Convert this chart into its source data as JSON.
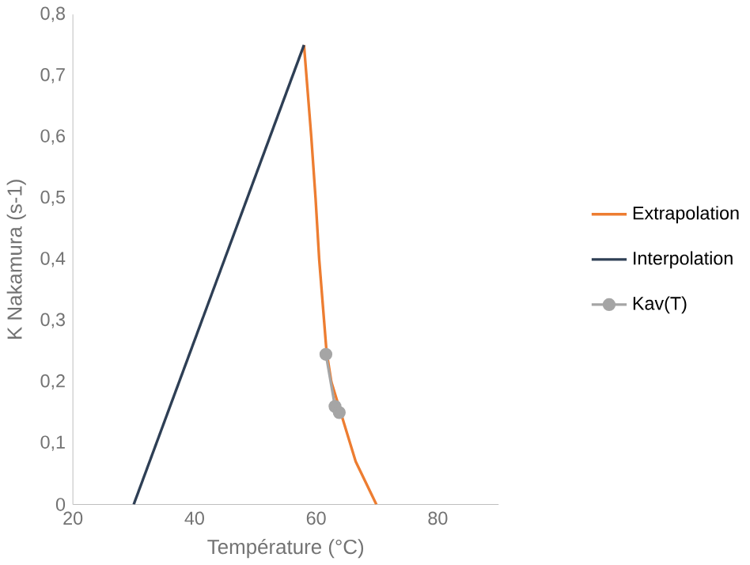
{
  "chart_data": {
    "type": "line",
    "xlabel": "Température (°C)",
    "ylabel": "K Nakamura (s-1)",
    "xlim": [
      20,
      90
    ],
    "xticks": [
      20,
      40,
      60,
      80
    ],
    "ylim": [
      0,
      0.8
    ],
    "yticks": [
      {
        "value": 0,
        "label": "0"
      },
      {
        "value": 0.1,
        "label": "0,1"
      },
      {
        "value": 0.2,
        "label": "0,2"
      },
      {
        "value": 0.3,
        "label": "0,3"
      },
      {
        "value": 0.4,
        "label": "0,4"
      },
      {
        "value": 0.5,
        "label": "0,5"
      },
      {
        "value": 0.6,
        "label": "0,6"
      },
      {
        "value": 0.7,
        "label": "0,7"
      },
      {
        "value": 0.8,
        "label": "0,8"
      }
    ],
    "grid": false,
    "legend": "right",
    "series": [
      {
        "name": "Extrapolation",
        "color": "#ed7d31",
        "marker": "none",
        "x": [
          58,
          59.2,
          59.9,
          60.5,
          61.3,
          61.7,
          62.5,
          66.5,
          69.9
        ],
        "values": [
          0.75,
          0.6,
          0.5,
          0.4,
          0.3,
          0.25,
          0.2,
          0.07,
          0
        ]
      },
      {
        "name": "Interpolation",
        "color": "#2e3f55",
        "marker": "none",
        "x": [
          30,
          58
        ],
        "values": [
          0,
          0.75
        ]
      },
      {
        "name": "Kav(T)",
        "color": "#a5a5a5",
        "marker": "circle",
        "x": [
          61.6,
          63.1,
          63.8
        ],
        "values": [
          0.245,
          0.16,
          0.15
        ]
      }
    ]
  }
}
